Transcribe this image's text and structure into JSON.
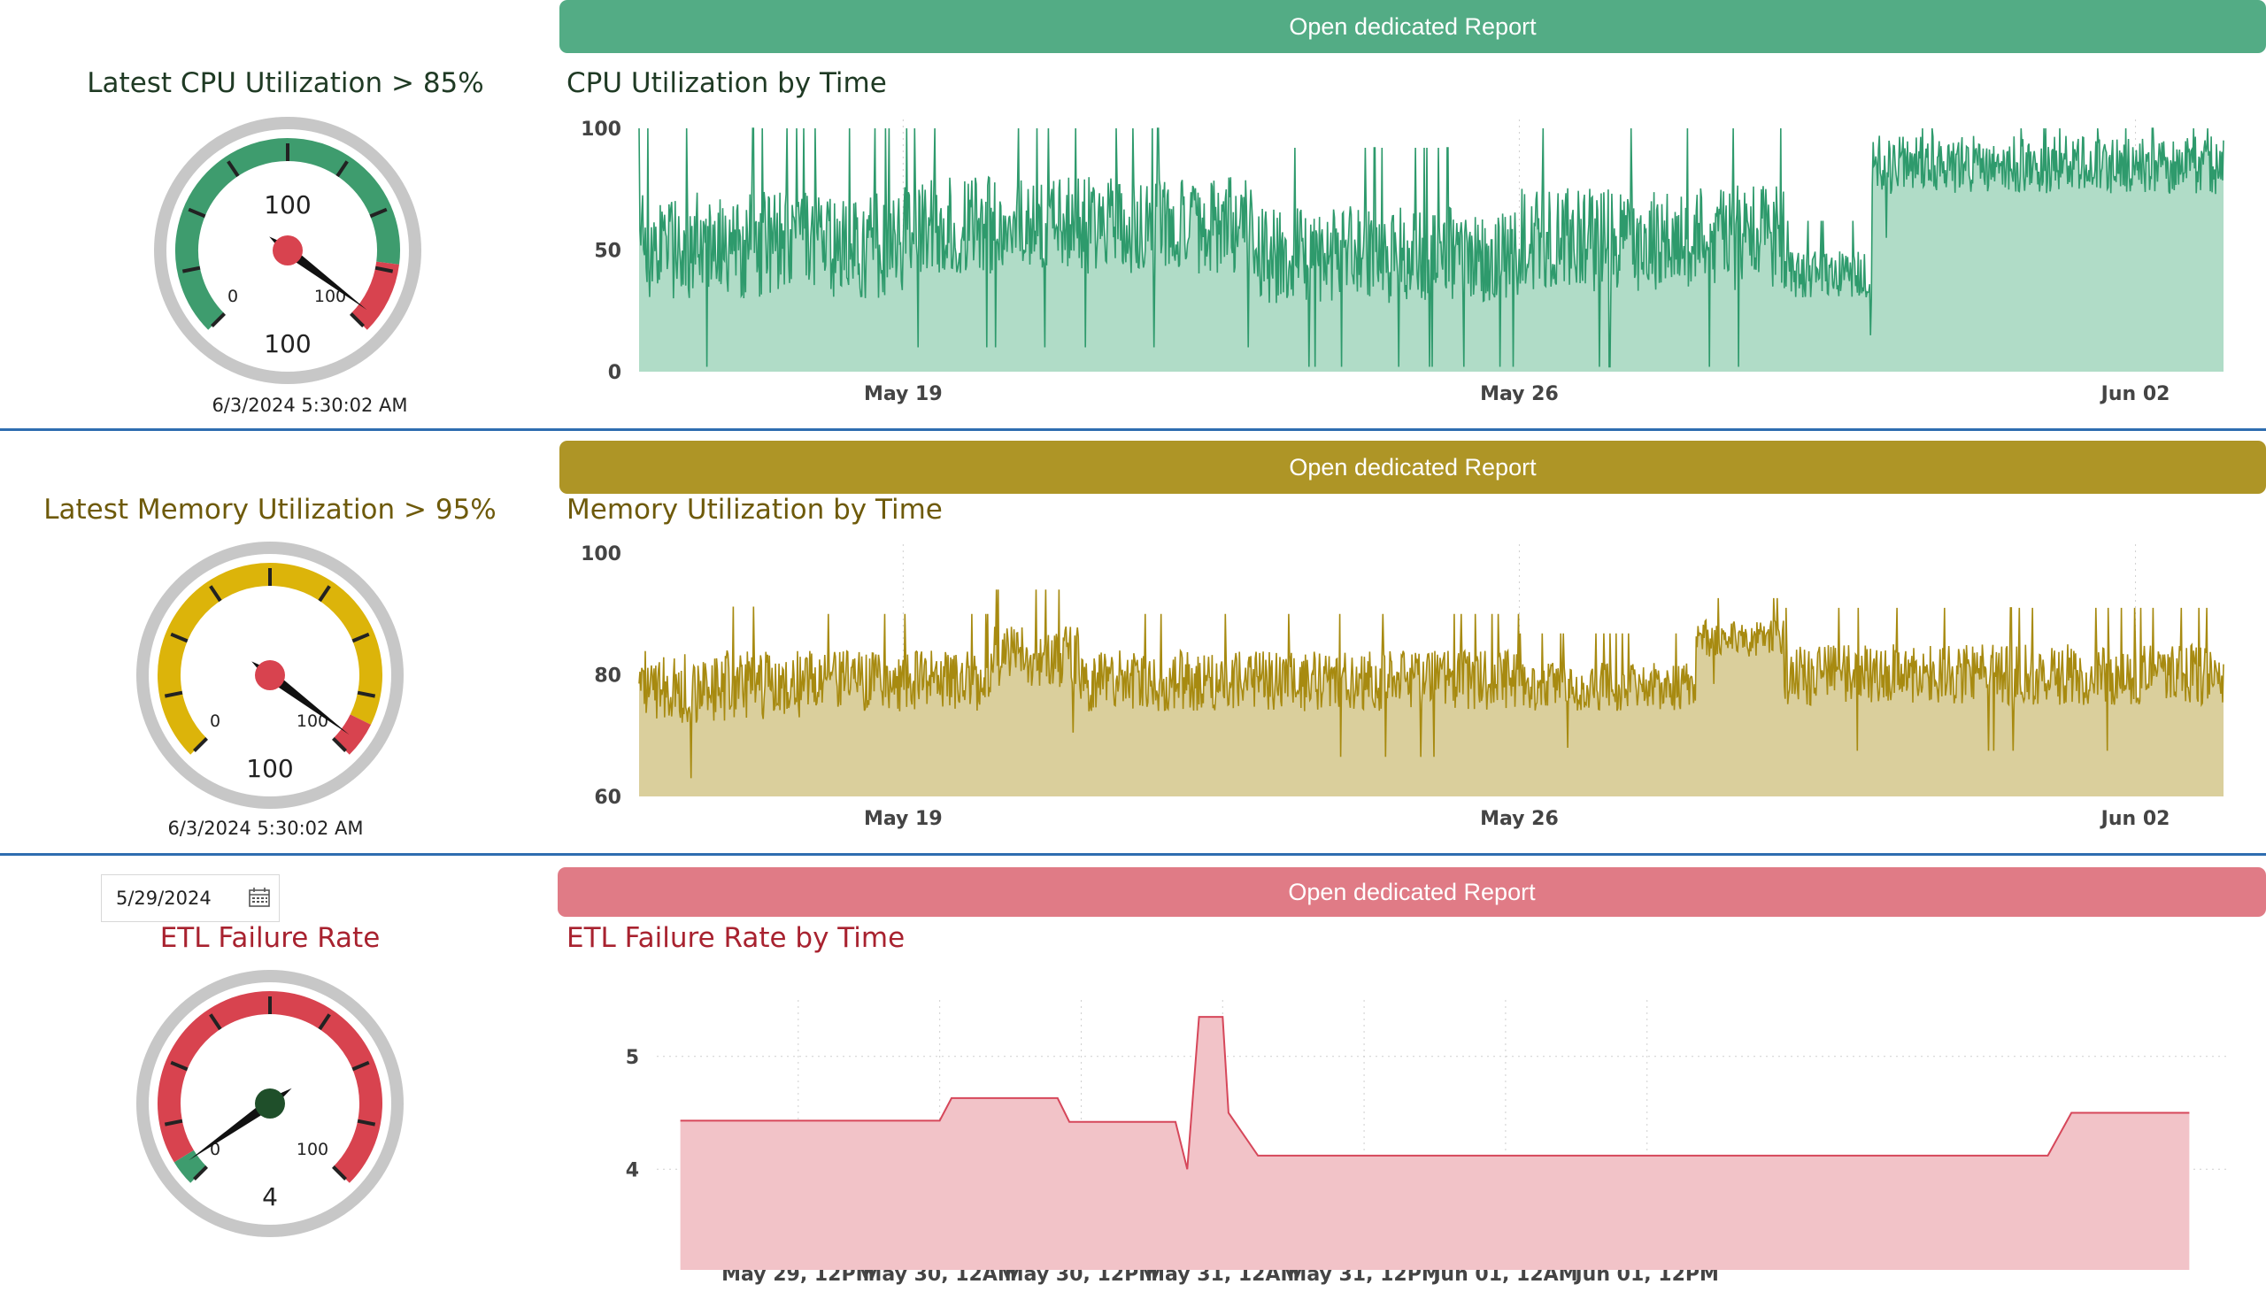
{
  "sections": {
    "cpu": {
      "report_button": "Open dedicated Report",
      "kpi_title": "Latest CPU Utilization > 85%",
      "gauge_value": "100",
      "gauge_min": "0",
      "gauge_max": "100",
      "gauge_target": "100",
      "timestamp": "6/3/2024 5:30:02 AM",
      "chart_title": "CPU Utilization by Time",
      "colors": {
        "accent": "#53ac85",
        "line": "#2e9a6c",
        "fill": "#b0dcc7",
        "title": "#1f3a24",
        "gauge_band": "#3e9c6e",
        "danger": "#d8434f"
      }
    },
    "memory": {
      "report_button": "Open dedicated Report",
      "kpi_title": "Latest Memory Utilization > 95%",
      "gauge_value": "100",
      "gauge_min": "0",
      "gauge_max": "100",
      "timestamp": "6/3/2024 5:30:02 AM",
      "chart_title": "Memory Utilization by Time",
      "colors": {
        "accent": "#ae9526",
        "line": "#a78a10",
        "fill": "#dacf9c",
        "title": "#6e5a0a",
        "gauge_band": "#dcb40a",
        "danger": "#d8434f"
      }
    },
    "etl": {
      "report_button": "Open dedicated Report",
      "date_filter": "5/29/2024",
      "kpi_title": "ETL Failure Rate",
      "gauge_value": "4",
      "gauge_min": "0",
      "gauge_max": "100",
      "chart_title": "ETL Failure Rate by Time",
      "colors": {
        "accent": "#e07b86",
        "line": "#d6475a",
        "fill": "#f2c3c8",
        "title": "#a8222f",
        "gauge_band": "#d8434f",
        "low": "#3e9c6e",
        "needle_hub": "#1f4f2a"
      }
    }
  },
  "chart_data": [
    {
      "type": "area",
      "title": "CPU Utilization by Time",
      "xlabel": "",
      "ylabel": "",
      "x_range": [
        "2024-05-16",
        "2024-06-03"
      ],
      "x_ticks": [
        "May 19",
        "May 26",
        "Jun 02"
      ],
      "y_ticks": [
        "0",
        "50",
        "100"
      ],
      "ylim": [
        0,
        100
      ],
      "grid": "vertical dotted",
      "series": [
        {
          "x_start": "2024-05-16",
          "x_end": "2024-06-03",
          "segments": [
            {
              "from": "2024-05-16",
              "to": "2024-05-19",
              "mean": 52,
              "spread": 22
            },
            {
              "from": "2024-05-19",
              "to": "2024-05-23",
              "mean": 60,
              "spread": 20
            },
            {
              "from": "2024-05-23",
              "to": "2024-05-26",
              "mean": 48,
              "spread": 20
            },
            {
              "from": "2024-05-26",
              "to": "2024-05-29",
              "mean": 55,
              "spread": 22
            },
            {
              "from": "2024-05-29",
              "to": "2024-05-30",
              "mean": 40,
              "spread": 10
            },
            {
              "from": "2024-05-30",
              "to": "2024-06-03",
              "mean": 85,
              "spread": 12
            }
          ],
          "max": 100,
          "min": 2
        }
      ]
    },
    {
      "type": "area",
      "title": "Memory Utilization by Time",
      "xlabel": "",
      "ylabel": "",
      "x_range": [
        "2024-05-16",
        "2024-06-03"
      ],
      "x_ticks": [
        "May 19",
        "May 26",
        "Jun 02"
      ],
      "y_ticks": [
        "60",
        "80",
        "100"
      ],
      "ylim": [
        60,
        100
      ],
      "grid": "vertical dotted",
      "series": [
        {
          "x_start": "2024-05-16",
          "x_end": "2024-06-03",
          "segments": [
            {
              "from": "2024-05-16",
              "to": "2024-05-18",
              "mean": 78,
              "spread": 6
            },
            {
              "from": "2024-05-18",
              "to": "2024-05-20",
              "mean": 79,
              "spread": 5
            },
            {
              "from": "2024-05-20",
              "to": "2024-05-21",
              "mean": 83,
              "spread": 5
            },
            {
              "from": "2024-05-21",
              "to": "2024-05-26",
              "mean": 79,
              "spread": 5
            },
            {
              "from": "2024-05-26",
              "to": "2024-05-28",
              "mean": 78,
              "spread": 4
            },
            {
              "from": "2024-05-28",
              "to": "2024-05-29",
              "mean": 86,
              "spread": 3
            },
            {
              "from": "2024-05-29",
              "to": "2024-06-03",
              "mean": 80,
              "spread": 5
            }
          ],
          "max": 94,
          "min": 62
        }
      ]
    },
    {
      "type": "area",
      "title": "ETL Failure Rate by Time",
      "xlabel": "",
      "ylabel": "",
      "x_ticks": [
        "May 29, 12PM",
        "May 30, 12AM",
        "May 30, 12PM",
        "May 31, 12AM",
        "May 31, 12PM",
        "Jun 01, 12AM",
        "Jun 01, 12PM"
      ],
      "y_ticks": [
        "4",
        "5"
      ],
      "ylim": [
        3.5,
        5.5
      ],
      "grid": "dotted both",
      "series": [
        {
          "name": "",
          "x_hours_from_may29_0000": [
            2,
            24,
            25,
            34,
            35,
            44,
            45,
            46,
            48,
            48.5,
            51,
            51.8,
            52.5,
            70,
            100,
            118,
            120,
            130
          ],
          "values": [
            4.43,
            4.43,
            4.63,
            4.63,
            4.42,
            4.42,
            4.0,
            5.35,
            5.35,
            4.5,
            4.12,
            4.12,
            4.12,
            4.12,
            4.12,
            4.12,
            4.5,
            4.5
          ]
        }
      ]
    }
  ]
}
